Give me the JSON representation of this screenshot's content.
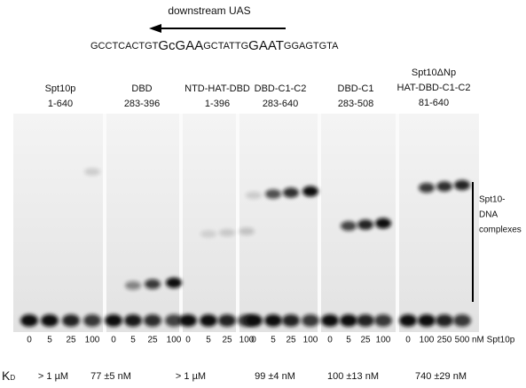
{
  "header": {
    "arrow_label": "downstream UAS",
    "sequence": [
      "GCCTCACTGT",
      "GcGAA",
      "GCTATTG",
      "GAAT",
      "GGAGTGTA"
    ]
  },
  "lanes": [
    {
      "lines": [
        "Spt10p",
        "1-640"
      ]
    },
    {
      "lines": [
        "DBD",
        "283-396"
      ]
    },
    {
      "lines": [
        "NTD-HAT-DBD",
        "1-396"
      ]
    },
    {
      "lines": [
        "DBD-C1-C2",
        "283-640"
      ]
    },
    {
      "lines": [
        "DBD-C1",
        "283-508"
      ]
    },
    {
      "lines": [
        "Spt10ΔNp",
        "HAT-DBD-C1-C2",
        "81-640"
      ]
    }
  ],
  "concentrations": [
    [
      "0",
      "5",
      "25",
      "100"
    ],
    [
      "0",
      "5",
      "25",
      "100"
    ],
    [
      "0",
      "5",
      "25",
      "100"
    ],
    [
      "0",
      "5",
      "25",
      "100"
    ],
    [
      "0",
      "5",
      "25",
      "100"
    ],
    [
      "0",
      "100",
      "250",
      "500"
    ]
  ],
  "concentration_unit": "nM Spt10p",
  "kd_label": {
    "main": "K",
    "sub": "D"
  },
  "kd_values": [
    "> 1 µM",
    "77 ±5 nM",
    "> 1 µM",
    "99 ±4 nM",
    "100 ±13 nM",
    "740 ±29 nM"
  ],
  "complex_label": [
    "Spt10-",
    "DNA",
    "complexes"
  ]
}
